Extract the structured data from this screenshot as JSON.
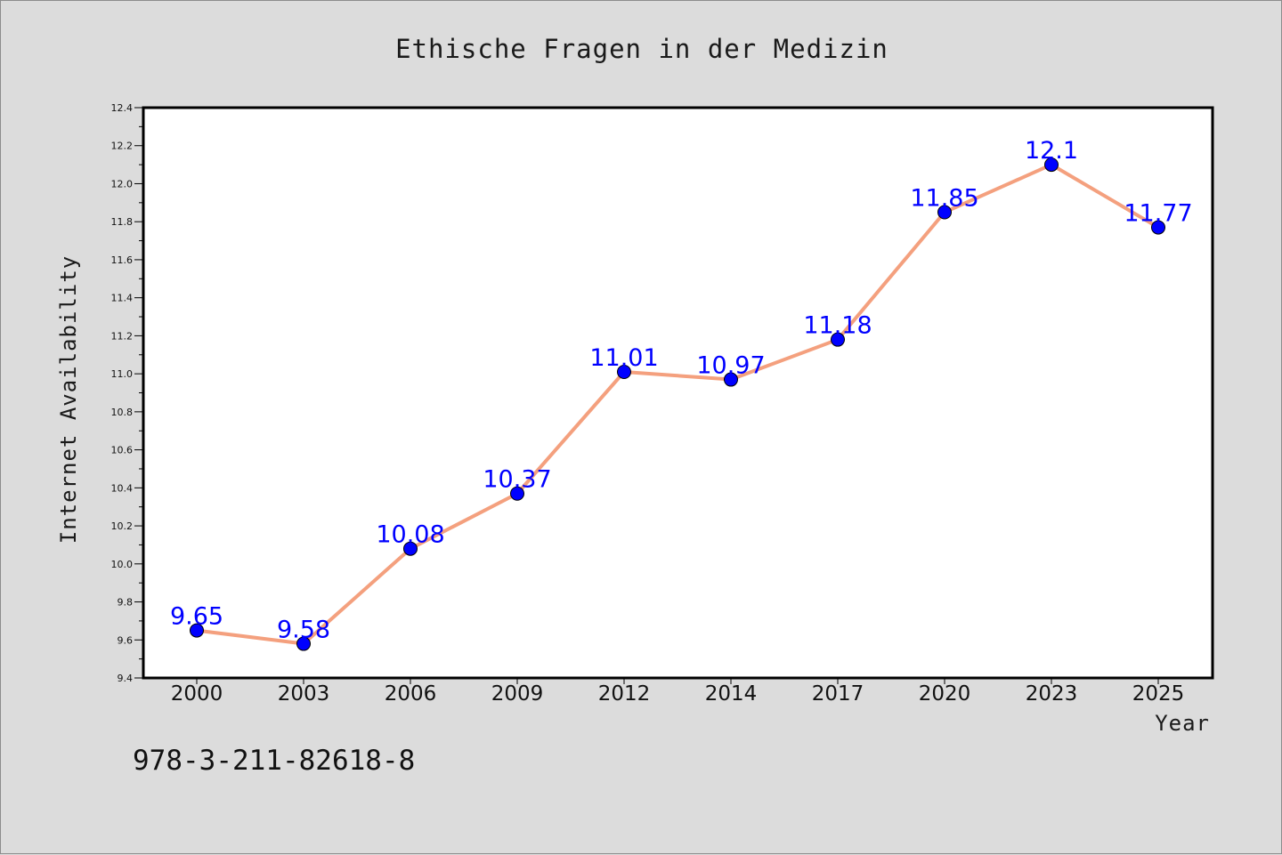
{
  "colors": {
    "background": "#dcdcdc",
    "plot_background": "#ffffff",
    "line": "#f4a07e",
    "marker": "#0000ff",
    "data_label": "#0000ff"
  },
  "isbn": "978-3-211-82618-8",
  "chart_data": {
    "type": "line",
    "title": "Ethische Fragen in der Medizin",
    "xlabel": "Year",
    "ylabel": "Internet Availability",
    "x": [
      "2000",
      "2003",
      "2006",
      "2009",
      "2012",
      "2014",
      "2017",
      "2020",
      "2023",
      "2025"
    ],
    "series": [
      {
        "values": [
          9.65,
          9.58,
          10.08,
          10.37,
          11.01,
          10.97,
          11.18,
          11.85,
          12.1,
          11.77
        ],
        "labels": [
          "9.65",
          "9.58",
          "10.08",
          "10.37",
          "11.01",
          "10.97",
          "11.18",
          "11.85",
          "12.1",
          "11.77"
        ]
      }
    ],
    "ylim": [
      9.4,
      12.4
    ],
    "yticks": [
      "9.4",
      "9.6",
      "9.8",
      "10.0",
      "10.2",
      "10.4",
      "10.6",
      "10.8",
      "11.0",
      "11.2",
      "11.4",
      "11.6",
      "11.8",
      "12.0",
      "12.2",
      "12.4"
    ],
    "grid": false,
    "legend": "none"
  }
}
